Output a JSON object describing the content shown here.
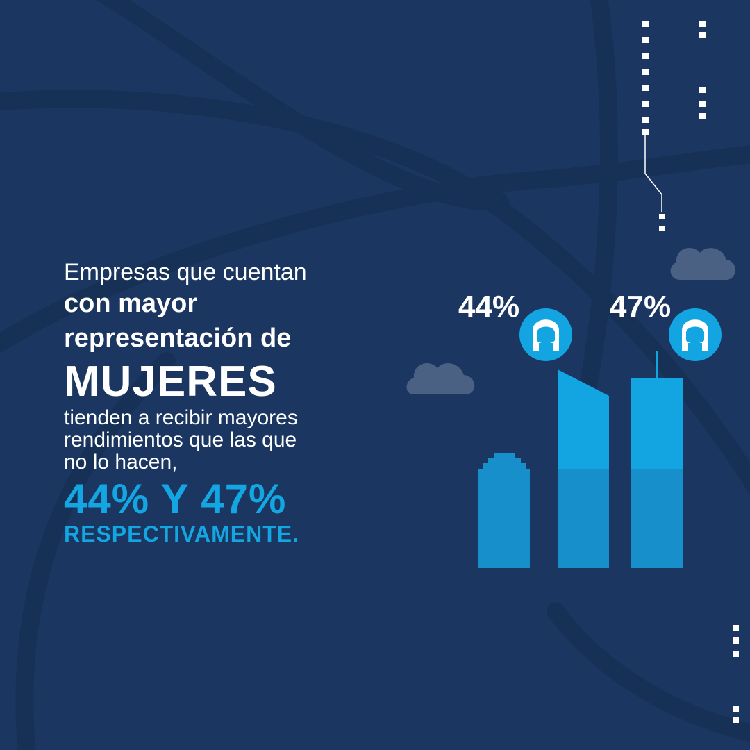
{
  "headline": {
    "line1": "Empresas que cuentan",
    "line2": "con mayor",
    "line3": "representación de",
    "line4": "MUJERES",
    "line5": "tienden a recibir mayores",
    "line6": "rendimientos que las que",
    "line7": "no lo hacen,",
    "line8": "44% Y 47%",
    "line9": "RESPECTIVAMENTE."
  },
  "badges": {
    "left_value": "44%",
    "right_value": "47%"
  },
  "colors": {
    "background": "#1b3761",
    "accent": "#13a6e3",
    "bg_lines": "#173156",
    "cloud": "#4a6184"
  },
  "icons": [
    "woman-icon",
    "cloud-icon",
    "building-icon"
  ]
}
